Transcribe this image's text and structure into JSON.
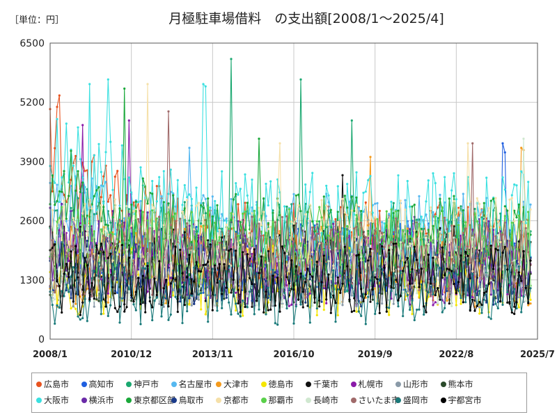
{
  "unit_label": "［単位：円］",
  "chart_data": {
    "type": "line",
    "title": "月極駐車場借料　の支出額[2008/1～2025/4]",
    "xlabel": "",
    "ylabel": "",
    "ylim": [
      0,
      6500
    ],
    "yticks": [
      "0",
      "1300",
      "2600",
      "3900",
      "5200",
      "6500"
    ],
    "xticks": [
      "2008/1",
      "2010/12",
      "2013/11",
      "2016/10",
      "2019/9",
      "2022/8",
      "2025/7"
    ],
    "x_start": "2008/1",
    "x_end": "2025/4",
    "grid": true,
    "legend_position": "bottom",
    "series": [
      {
        "name": "広島市",
        "color": "#e8531f",
        "base": 2100,
        "amp": 900,
        "level_start": 3800,
        "spikes": [
          [
            0,
            5050
          ],
          [
            3,
            5100
          ],
          [
            4,
            5350
          ]
        ]
      },
      {
        "name": "高知市",
        "color": "#1f5fe0",
        "base": 1800,
        "amp": 800,
        "level_start": 1800,
        "spikes": [
          [
            195,
            4300
          ],
          [
            196,
            4100
          ]
        ]
      },
      {
        "name": "神戸市",
        "color": "#1aa870",
        "base": 2000,
        "amp": 1000,
        "level_start": 2500,
        "spikes": [
          [
            78,
            6150
          ],
          [
            108,
            5700
          ],
          [
            130,
            4800
          ]
        ]
      },
      {
        "name": "名古屋市",
        "color": "#56b8f0",
        "base": 2300,
        "amp": 900,
        "level_start": 2800,
        "spikes": [
          [
            60,
            4200
          ]
        ]
      },
      {
        "name": "大津市",
        "color": "#f49a1c",
        "base": 1600,
        "amp": 900,
        "level_start": 1600,
        "spikes": [
          [
            203,
            4200
          ],
          [
            204,
            4150
          ],
          [
            138,
            4000
          ]
        ]
      },
      {
        "name": "徳島市",
        "color": "#f5e600",
        "base": 1300,
        "amp": 800,
        "level_start": 1300,
        "spikes": []
      },
      {
        "name": "千葉市",
        "color": "#111111",
        "base": 1600,
        "amp": 900,
        "level_start": 1600,
        "spikes": [
          [
            126,
            3600
          ]
        ]
      },
      {
        "name": "札幌市",
        "color": "#8a1aa8",
        "base": 1500,
        "amp": 800,
        "level_start": 2000,
        "spikes": [
          [
            14,
            4700
          ],
          [
            34,
            4800
          ]
        ]
      },
      {
        "name": "山形市",
        "color": "#8a9aa8",
        "base": 1400,
        "amp": 700,
        "level_start": 1400,
        "spikes": []
      },
      {
        "name": "熊本市",
        "color": "#2a4a2a",
        "base": 1500,
        "amp": 700,
        "level_start": 1500,
        "spikes": []
      },
      {
        "name": "大阪市",
        "color": "#3ae0e0",
        "base": 2600,
        "amp": 1100,
        "level_start": 3800,
        "spikes": [
          [
            17,
            5600
          ],
          [
            25,
            5700
          ],
          [
            66,
            5600
          ],
          [
            67,
            5550
          ]
        ]
      },
      {
        "name": "横浜市",
        "color": "#6a2aa8",
        "base": 1800,
        "amp": 900,
        "level_start": 2200,
        "spikes": []
      },
      {
        "name": "東京都区部",
        "color": "#1aa83a",
        "base": 2300,
        "amp": 900,
        "level_start": 3400,
        "spikes": [
          [
            32,
            5500
          ],
          [
            90,
            4400
          ]
        ]
      },
      {
        "name": "鳥取市",
        "color": "#1a3a8a",
        "base": 1500,
        "amp": 800,
        "level_start": 1500,
        "spikes": []
      },
      {
        "name": "京都市",
        "color": "#f5e0a8",
        "base": 2200,
        "amp": 900,
        "level_start": 2200,
        "spikes": [
          [
            42,
            5600
          ],
          [
            99,
            4300
          ],
          [
            180,
            4300
          ]
        ]
      },
      {
        "name": "那覇市",
        "color": "#5ad04a",
        "base": 2000,
        "amp": 900,
        "level_start": 2000,
        "spikes": []
      },
      {
        "name": "長崎市",
        "color": "#d0e8d0",
        "base": 1500,
        "amp": 800,
        "level_start": 1500,
        "spikes": [
          [
            204,
            4400
          ]
        ]
      },
      {
        "name": "さいたま市",
        "color": "#a06a6a",
        "base": 1800,
        "amp": 900,
        "level_start": 1800,
        "spikes": [
          [
            51,
            5000
          ],
          [
            182,
            4300
          ]
        ]
      },
      {
        "name": "盛岡市",
        "color": "#1a7a7a",
        "base": 1000,
        "amp": 700,
        "level_start": 1000,
        "spikes": []
      },
      {
        "name": "宇都宮市",
        "color": "#000000",
        "base": 1300,
        "amp": 800,
        "level_start": 1300,
        "spikes": []
      }
    ]
  }
}
